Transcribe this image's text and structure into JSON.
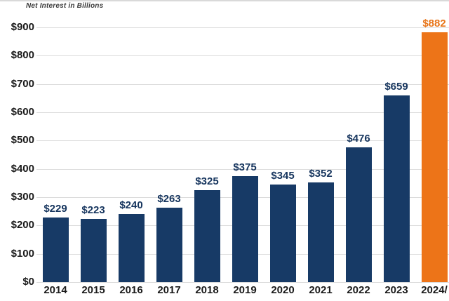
{
  "title": "Net Interest in Billions",
  "chart_data": {
    "type": "bar",
    "title": "Net Interest in Billions",
    "categories": [
      "2014",
      "2015",
      "2016",
      "2017",
      "2018",
      "2019",
      "2020",
      "2021",
      "2022",
      "2023",
      "2024/"
    ],
    "values": [
      229,
      223,
      240,
      263,
      325,
      375,
      345,
      352,
      476,
      659,
      882
    ],
    "value_labels": [
      "$229",
      "$223",
      "$240",
      "$263",
      "$325",
      "$375",
      "$345",
      "$352",
      "$476",
      "$659",
      "$882"
    ],
    "xlabel": "",
    "ylabel": "",
    "ylim": [
      0,
      900
    ],
    "ytick_values": [
      0,
      100,
      200,
      300,
      400,
      500,
      600,
      700,
      800,
      900
    ],
    "ytick_labels": [
      "$0",
      "$100",
      "$200",
      "$300",
      "$400",
      "$500",
      "$600",
      "$700",
      "$800",
      "$900"
    ],
    "grid": "horizontal",
    "legend": "none",
    "highlight_index": 10,
    "colors": {
      "bar": "#173a66",
      "highlight_bar": "#ed7418",
      "value_label": "#16355e",
      "highlight_value_label": "#e8761b",
      "gridline": "#dcdcdc",
      "axis_text": "#1a1a1a"
    }
  }
}
